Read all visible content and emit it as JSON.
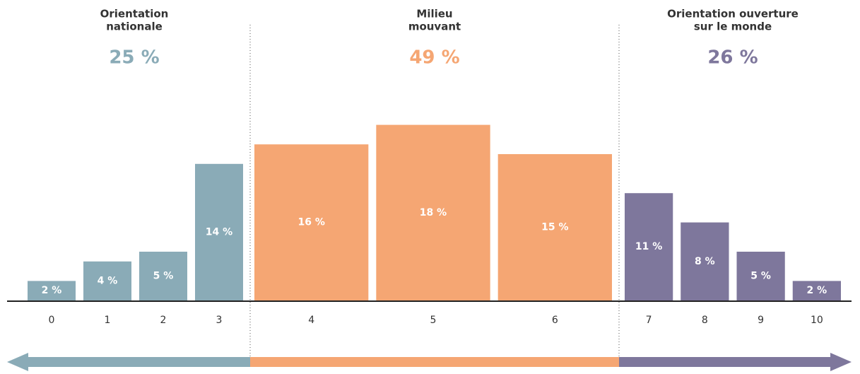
{
  "chart_data": {
    "type": "bar",
    "series": [
      {
        "name": [
          "Orientation",
          "nationale"
        ],
        "color": "#8aabb7",
        "total": 25,
        "total_label": "25 %",
        "categories": [
          "0",
          "1",
          "2",
          "3"
        ],
        "values": [
          2,
          4,
          5,
          14
        ],
        "value_labels": [
          "2 %",
          "4 %",
          "5 %",
          "14 %"
        ]
      },
      {
        "name": [
          "Milieu",
          "mouvant"
        ],
        "color": "#f5a673",
        "total": 49,
        "total_label": "49 %",
        "categories": [
          "4",
          "5",
          "6"
        ],
        "values": [
          16,
          18,
          15
        ],
        "value_labels": [
          "16 %",
          "18 %",
          "15 %"
        ]
      },
      {
        "name": [
          "Orientation ouverture",
          "sur le monde"
        ],
        "color": "#7e779c",
        "total": 26,
        "total_label": "26 %",
        "categories": [
          "7",
          "8",
          "9",
          "10"
        ],
        "values": [
          11,
          8,
          5,
          2
        ],
        "value_labels": [
          "11 %",
          "8 %",
          "5 %",
          "2 %"
        ]
      }
    ]
  }
}
